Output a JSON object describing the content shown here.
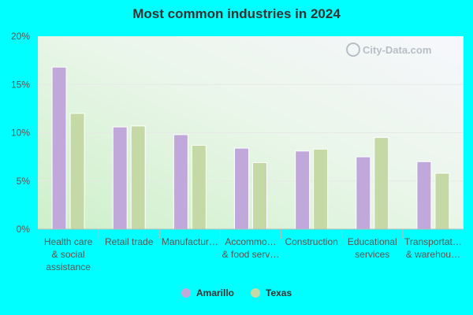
{
  "chart_data": {
    "type": "bar",
    "title": "Most common industries in 2024",
    "categories": [
      [
        "Health care",
        "& social",
        "assistance"
      ],
      [
        "Retail trade"
      ],
      [
        "Manufactur…"
      ],
      [
        "Accommo…",
        "& food serv…"
      ],
      [
        "Construction"
      ],
      [
        "Educational",
        "services"
      ],
      [
        "Transportat…",
        "& warehou…"
      ]
    ],
    "series": [
      {
        "name": "Amarillo",
        "values": [
          16.8,
          10.6,
          9.8,
          8.4,
          8.1,
          7.5,
          7.0
        ],
        "color": "#c0a9da"
      },
      {
        "name": "Texas",
        "values": [
          12.0,
          10.7,
          8.7,
          6.9,
          8.3,
          9.5,
          5.8
        ],
        "color": "#c5d9a6"
      }
    ],
    "ylim": [
      0,
      20
    ],
    "yticks": [
      "0%",
      "5%",
      "10%",
      "15%",
      "20%"
    ],
    "ytick_values": [
      0,
      5,
      10,
      15,
      20
    ],
    "grid": true,
    "legend_position": "bottom"
  },
  "watermark": "City-Data.com"
}
